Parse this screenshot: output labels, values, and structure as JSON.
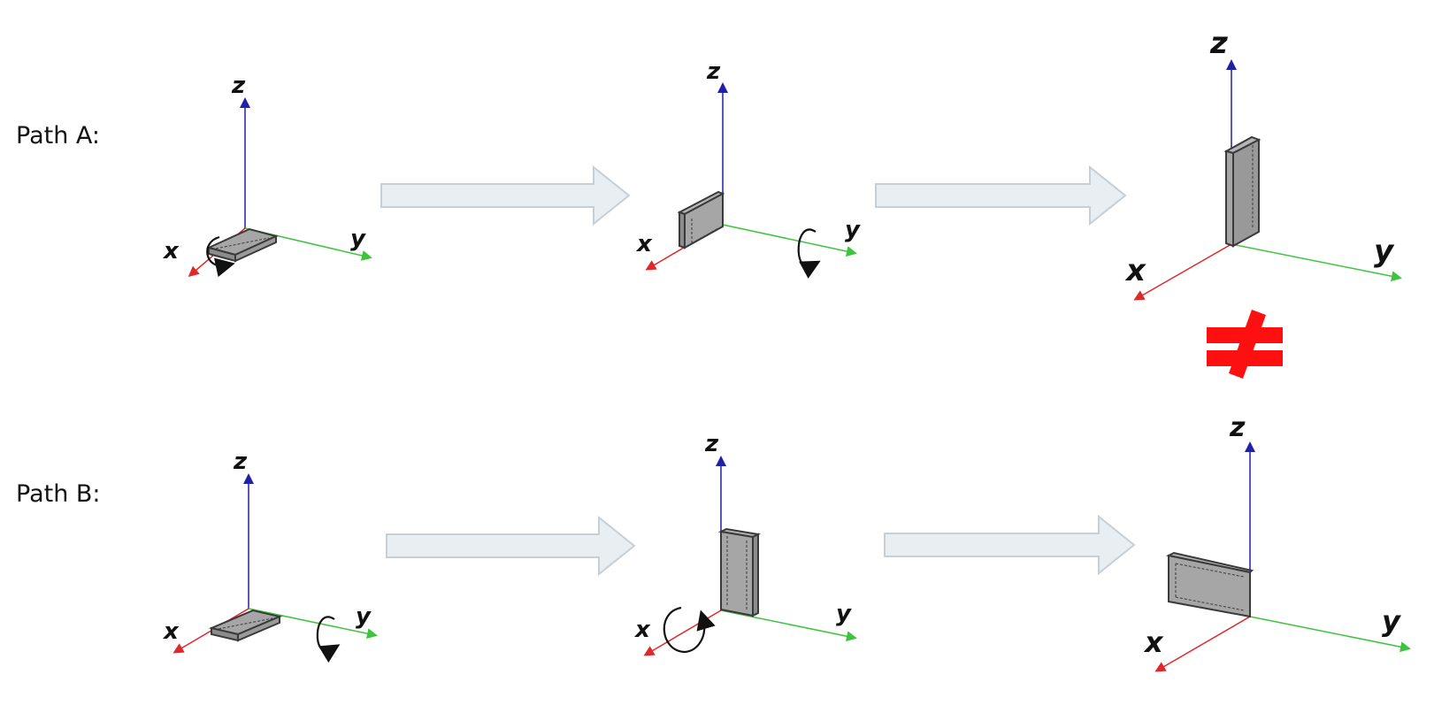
{
  "path_a": {
    "label": "Path A:"
  },
  "path_b": {
    "label": "Path B:"
  },
  "axes": {
    "x": "x",
    "y": "y",
    "z": "z"
  },
  "not_equal_symbol": "≠",
  "colors": {
    "x_axis": "#e0282a",
    "y_axis": "#3cc43c",
    "z_axis": "#2020a8",
    "plate_fill": "#a6a6a6",
    "plate_edge": "#3a3a3a",
    "arrow_fill": "#e8eef2",
    "arrow_edge": "#c6cfd6",
    "not_equal": "#ff1010"
  }
}
